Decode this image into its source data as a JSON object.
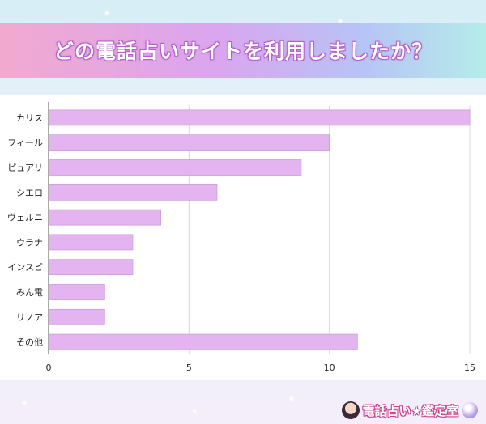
{
  "header": {
    "title": "どの電話占いサイトを利用しましたか？"
  },
  "logo": {
    "text": "電話占い★鑑定室"
  },
  "colors": {
    "bar_fill": "#e3b4ef",
    "title_text": "#ffffff"
  },
  "chart_data": {
    "type": "bar",
    "orientation": "horizontal",
    "categories": [
      "カリス",
      "フィール",
      "ピュアリ",
      "シエロ",
      "ヴェルニ",
      "ウラナ",
      "インスピ",
      "みん電",
      "リノア",
      "その他"
    ],
    "values": [
      15,
      10,
      9,
      6,
      4,
      3,
      3,
      2,
      2,
      11
    ],
    "xlim": [
      0,
      15
    ],
    "xticks": [
      0,
      5,
      10,
      15
    ],
    "grid": true,
    "title": "どの電話占いサイトを利用しましたか？",
    "xlabel": "",
    "ylabel": ""
  }
}
